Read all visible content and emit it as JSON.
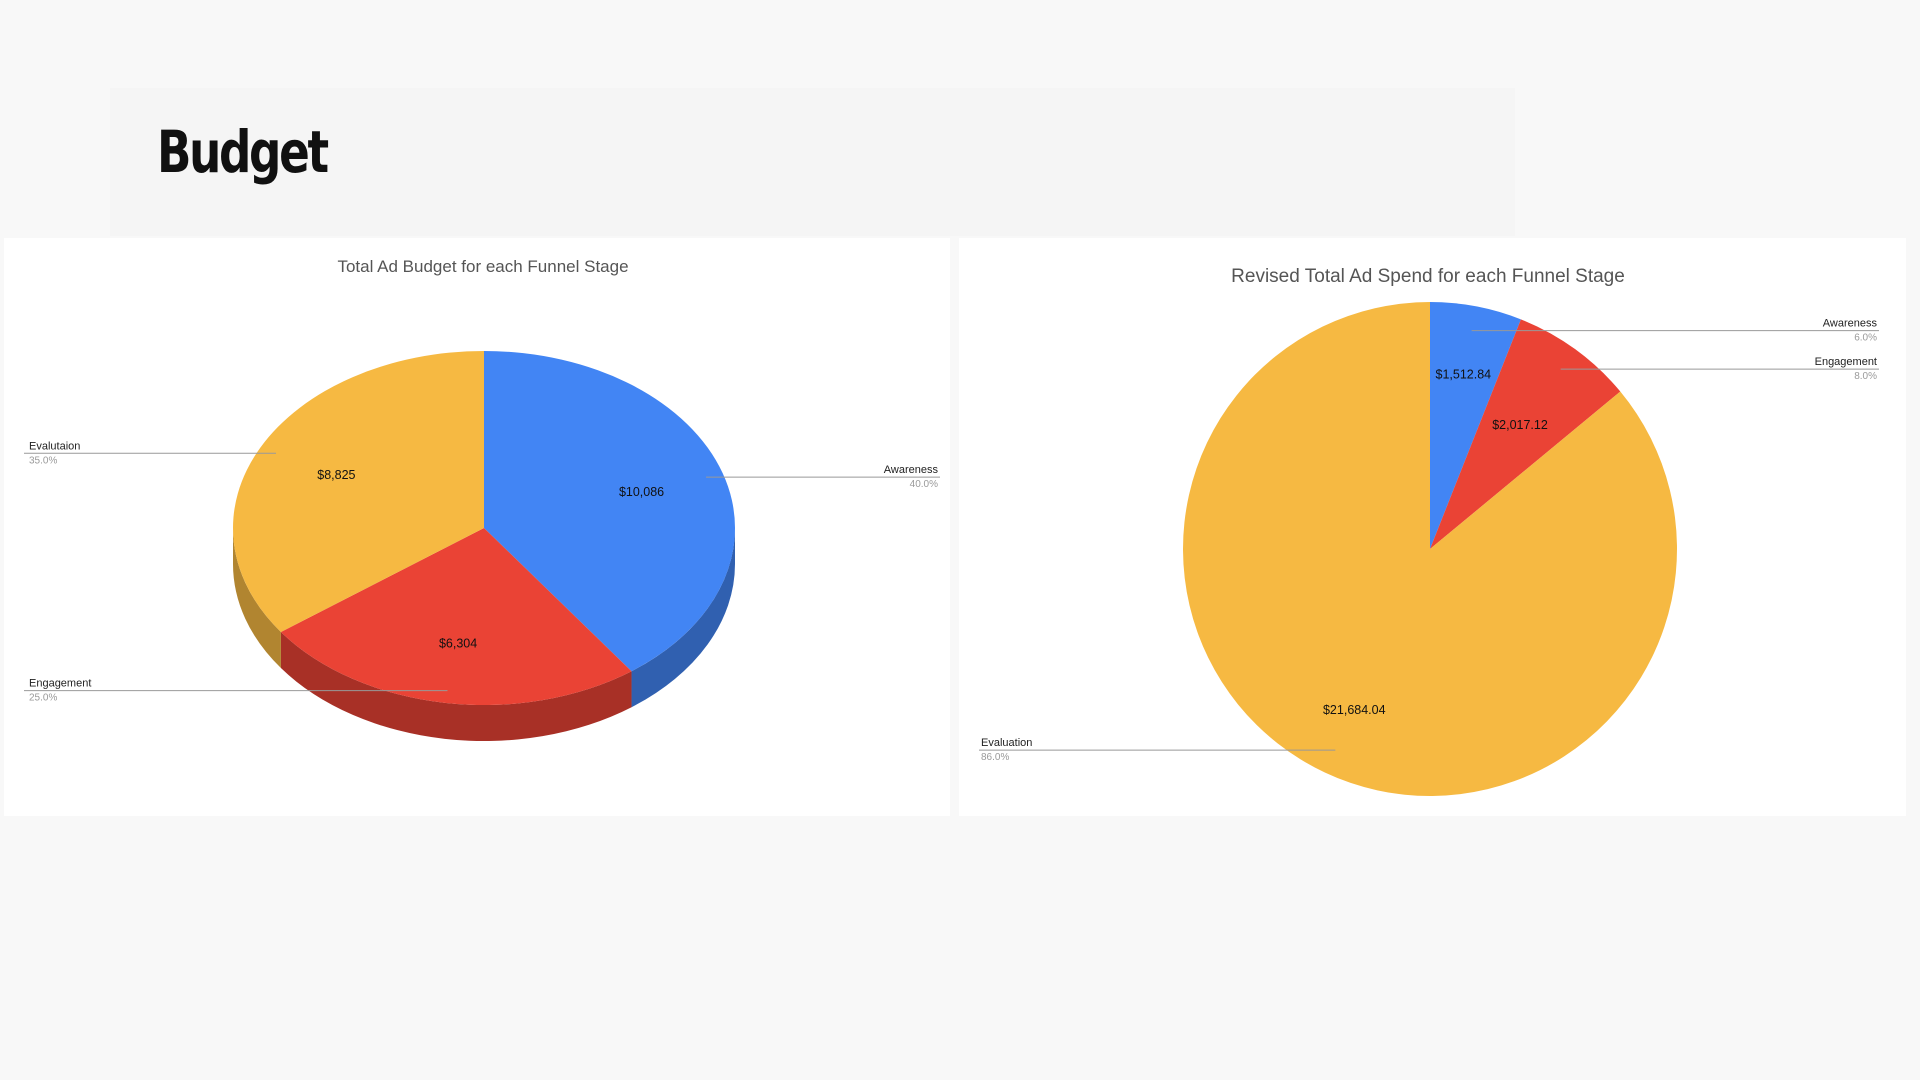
{
  "slide": {
    "title": "Budget"
  },
  "chart_data": [
    {
      "type": "pie",
      "title": "Total Ad Budget for each Funnel Stage",
      "categories": [
        "Awareness",
        "Engagement",
        "Evalutaion"
      ],
      "values": [
        10086,
        6304,
        8825
      ],
      "value_labels": [
        "$10,086",
        "$6,304",
        "$8,825"
      ],
      "percent_labels": [
        "40.0%",
        "25.0%",
        "35.0%"
      ],
      "colors": [
        "#4285f4",
        "#ea4335",
        "#f6b942"
      ],
      "style": "3d",
      "legend": "leader-labels"
    },
    {
      "type": "pie",
      "title": "Revised Total Ad Spend for each Funnel Stage",
      "categories": [
        "Awareness",
        "Engagement",
        "Evaluation"
      ],
      "values": [
        1512.84,
        2017.12,
        21684.04
      ],
      "value_labels": [
        "$1,512.84",
        "$2,017.12",
        "$21,684.04"
      ],
      "percent_labels": [
        "6.0%",
        "8.0%",
        "86.0%"
      ],
      "colors": [
        "#4285f4",
        "#ea4335",
        "#f6b942"
      ],
      "style": "2d",
      "legend": "leader-labels"
    }
  ]
}
